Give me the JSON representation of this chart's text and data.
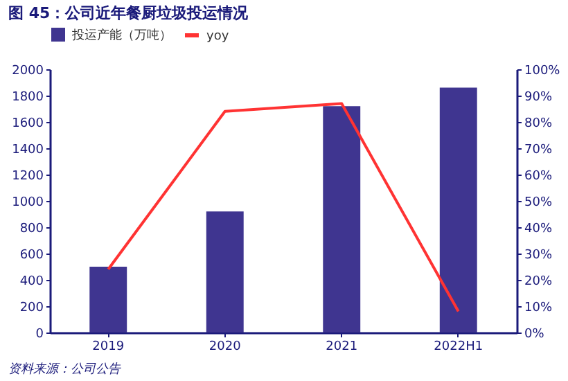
{
  "chart_data": {
    "type": "bar",
    "title": "图 45：公司近年餐厨垃圾投运情况",
    "categories": [
      "2019",
      "2020",
      "2021",
      "2022H1"
    ],
    "series": [
      {
        "name": "投运产能（万吨）",
        "color": "#3f3590",
        "values": [
          500,
          920,
          1720,
          1860
        ]
      },
      {
        "name": "yoy",
        "type": "line",
        "axis": "y2",
        "color": "#ff3333",
        "values": [
          24,
          84,
          87,
          8
        ]
      }
    ],
    "ylim": [
      0,
      2000
    ],
    "yticks": [
      0,
      200,
      400,
      600,
      800,
      1000,
      1200,
      1400,
      1600,
      1800,
      2000
    ],
    "y2lim": [
      0,
      100
    ],
    "y2ticks": [
      {
        "value": 0,
        "label": "0%"
      },
      {
        "value": 10,
        "label": "10%"
      },
      {
        "value": 20,
        "label": "20%"
      },
      {
        "value": 30,
        "label": "30%"
      },
      {
        "value": 40,
        "label": "40%"
      },
      {
        "value": 50,
        "label": "50%"
      },
      {
        "value": 60,
        "label": "60%"
      },
      {
        "value": 70,
        "label": "70%"
      },
      {
        "value": 80,
        "label": "80%"
      },
      {
        "value": 90,
        "label": "90%"
      },
      {
        "value": 100,
        "label": "100%"
      }
    ],
    "legend": "top",
    "grid": false,
    "annotations": [
      "资料来源：公司公告"
    ]
  }
}
